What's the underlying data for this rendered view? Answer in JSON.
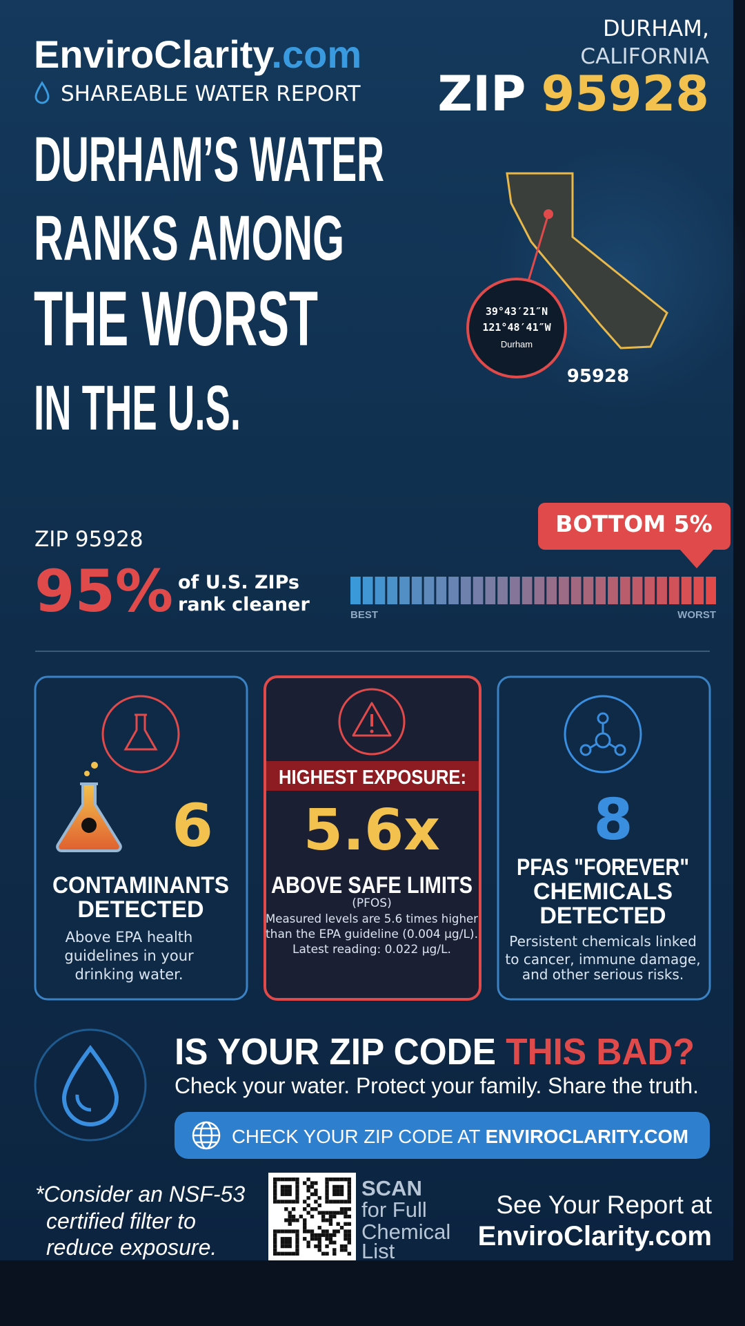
{
  "header": {
    "brand_name": "EnviroClarity",
    "brand_tld": ".com",
    "subtitle": "SHAREABLE WATER REPORT",
    "city": "DURHAM,",
    "state": "CALIFORNIA",
    "zip_label": "ZIP",
    "zip_code": "95928"
  },
  "headline": [
    "DURHAM’S WATER",
    "RANKS AMONG",
    "THE WORST",
    "IN THE U.S."
  ],
  "map": {
    "lat": "39°43′21″N",
    "lon": "121°48′41″W",
    "place": "Durham",
    "zip": "95928"
  },
  "ranking": {
    "zip": "ZIP 95928",
    "percent": "95%",
    "caption": [
      "of U.S. ZIPs",
      "rank cleaner"
    ],
    "badge": "BOTTOM 5%",
    "best": "BEST",
    "worst": "WORST"
  },
  "cards": [
    {
      "number": "6",
      "title": [
        "CONTAMINANTS",
        "DETECTED"
      ],
      "description": [
        "Above EPA health",
        "guidelines in your",
        "drinking water."
      ]
    },
    {
      "banner": "HIGHEST EXPOSURE:",
      "number": "5.6x",
      "title": [
        "ABOVE SAFE LIMITS"
      ],
      "note": "(PFOS)",
      "description": [
        "Measured levels are 5.6 times higher",
        "than the EPA guideline (0.004 µg/L).",
        "Latest reading: 0.022 µg/L."
      ]
    },
    {
      "number": "8",
      "title": [
        "PFAS \"FOREVER\"",
        "CHEMICALS",
        "DETECTED"
      ],
      "description": [
        "Persistent chemicals linked",
        "to cancer, immune damage,",
        "and other serious risks."
      ]
    }
  ],
  "cta": {
    "title": "IS YOUR ZIP CODE ",
    "title_highlight": "THIS BAD?",
    "subtitle": "Check your water. Protect your family. Share the truth.",
    "button_text": "CHECK YOUR ZIP CODE AT ",
    "button_bold": "ENVIROCLARITY.COM"
  },
  "footer": {
    "note": [
      "*Consider an NSF-53",
      "certified filter to",
      "reduce exposure."
    ],
    "scan": [
      "SCAN",
      "for Full",
      "Chemical",
      "List"
    ],
    "see_report": "See Your Report at",
    "site": "EnviroClarity.com"
  }
}
